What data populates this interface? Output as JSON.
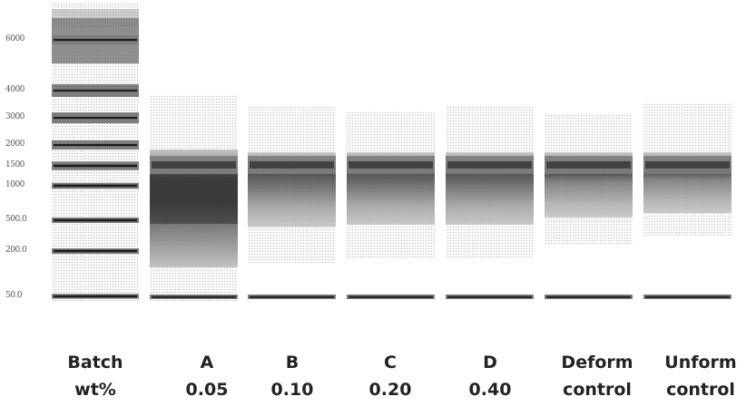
{
  "ladder": {
    "labels": [
      "6000",
      "4000",
      "3000",
      "2000",
      "1500",
      "1000",
      "500.0",
      "200.0",
      "50.0"
    ]
  },
  "lanes": [
    {
      "name": "ladder"
    },
    {
      "name": "A",
      "top": "Batch"
    },
    {
      "name": "A"
    },
    {
      "name": "B"
    },
    {
      "name": "C"
    },
    {
      "name": "D"
    },
    {
      "name": "Deform"
    },
    {
      "name": "Unform"
    }
  ],
  "captions": {
    "row1": [
      "Batch",
      "A",
      "B",
      "C",
      "D",
      "Deform",
      "Unform"
    ],
    "row2": [
      "wt%",
      "0.05",
      "0.10",
      "0.20",
      "0.40",
      "control",
      "control"
    ]
  },
  "colors": {
    "band": "#111111",
    "smear": "#888888"
  }
}
